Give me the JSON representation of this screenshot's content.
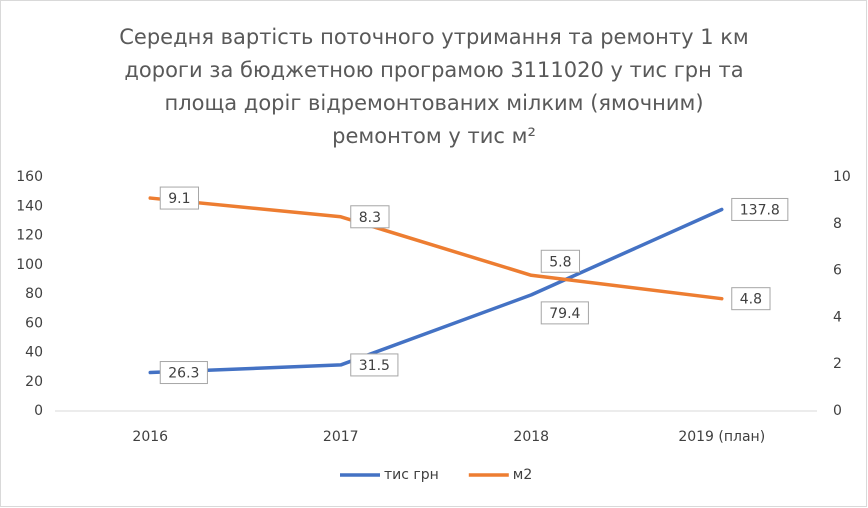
{
  "chart_data": {
    "type": "line",
    "title": [
      "Середня вартість поточного утримання та ремонту 1 км",
      "дороги за бюджетною програмою 3111020 у тис грн та",
      "площа доріг відремонтованих мілким (ямочним)",
      "ремонтом у тис м²"
    ],
    "categories": [
      "2016",
      "2017",
      "2018",
      "2019 (план)"
    ],
    "series": [
      {
        "name": "тис грн",
        "color": "#4472c4",
        "values": [
          26.3,
          31.5,
          79.4,
          137.8
        ]
      },
      {
        "name": "м2",
        "color": "#ed7d31",
        "values": [
          9.1,
          8.3,
          5.8,
          4.8
        ],
        "axis": "y2"
      }
    ],
    "ylim": [
      0,
      160
    ],
    "yticks": [
      0,
      20,
      40,
      60,
      80,
      100,
      120,
      140,
      160
    ],
    "y2lim": [
      0,
      10
    ],
    "y2ticks": [
      0,
      2,
      4,
      6,
      8,
      10
    ],
    "grid": false,
    "legend": "bottom"
  }
}
